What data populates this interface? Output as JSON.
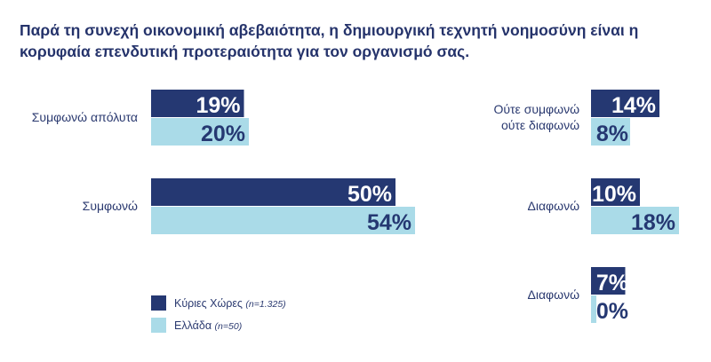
{
  "chart_data": {
    "type": "bar",
    "orientation": "horizontal",
    "title": "Παρά τη συνεχή οικονομική αβεβαιότητα, η δημιουργική τεχνητή νοημοσύνη είναι η κορυφαία επενδυτική προτεραιότητα για τον οργανισμό σας.",
    "unit": "%",
    "groups": [
      {
        "category": "Συμφωνώ απόλυτα",
        "values": [
          19,
          20
        ]
      },
      {
        "category": "Συμφωνώ",
        "values": [
          50,
          54
        ]
      },
      {
        "category": "Ούτε συμφωνώ ούτε διαφωνώ",
        "lines": [
          "Ούτε συμφωνώ",
          "ούτε διαφωνώ"
        ],
        "values": [
          14,
          8
        ]
      },
      {
        "category": "Διαφωνώ",
        "values": [
          10,
          18
        ]
      },
      {
        "category": "Διαφωνώ",
        "values": [
          7,
          0
        ]
      }
    ],
    "series": [
      {
        "name": "Κύριες Χώρες",
        "note": "(n=1.325)",
        "color": "#253872"
      },
      {
        "name": "Ελλάδα",
        "note": "(n=50)",
        "color": "#aadbe8"
      }
    ],
    "legend_position": "bottom-left",
    "grid": false
  }
}
